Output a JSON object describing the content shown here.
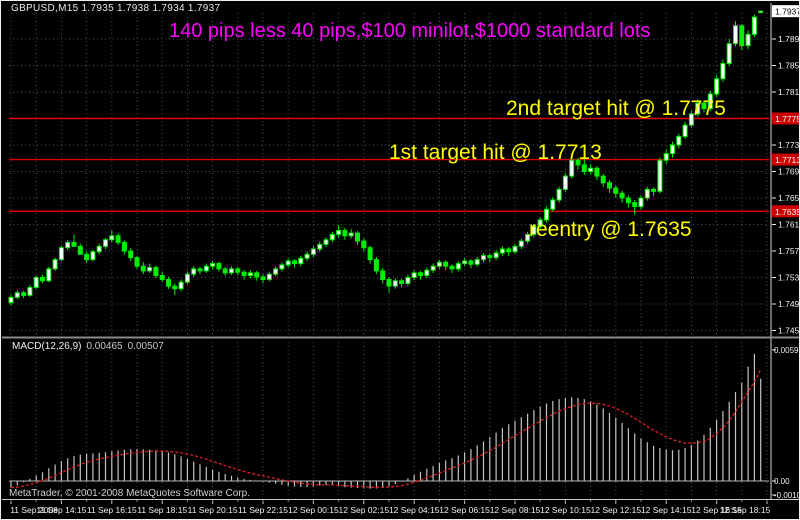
{
  "window": {
    "title_ohlc": "GBPUSD,M15 1.7935 1.7938 1.7934 1.7937",
    "copyright": "MetaTrader, © 2001-2008 MetaQuotes Software Corp."
  },
  "annotations": {
    "pips_note": "140 pips less 40 pips,$100 minilot,$1000 standard lots",
    "target2": "2nd target hit @ 1.7775",
    "target1": "1st target hit @ 1.7713",
    "reentry": "reentry @ 1.7635"
  },
  "colors": {
    "background": "#000000",
    "bull_body": "#ffffff",
    "bear_body_and_wick": "#00f000",
    "grid": "#44525e",
    "hline_red": "#dd0000",
    "axis_text": "#f0f0f0",
    "magenta_note": "#ff00ff",
    "yellow_note": "#ffff00",
    "macd_histogram": "#c4c4c4",
    "macd_signal": "#e02020",
    "price_flag_red_bg": "#cc0000",
    "current_price_flag_bg": "#ffffff"
  },
  "chart_data": {
    "type": "candlestick",
    "symbol": "GBPUSD",
    "timeframe": "M15",
    "title": "GBPUSD,M15",
    "last_bar": {
      "open": 1.7935,
      "high": 1.7938,
      "low": 1.7934,
      "close": 1.7937
    },
    "current_price_label": "1.7937",
    "price_range_hint": {
      "top": 1.794,
      "bottom": 1.745
    },
    "grid": "dotted",
    "price_ticks": [
      "1.7895",
      "1.7855",
      "1.7815",
      "1.7775",
      "1.7735",
      "1.7695",
      "1.7655",
      "1.7615",
      "1.7575",
      "1.7535",
      "1.7495",
      "1.7455"
    ],
    "x_labels": [
      "11 Sep 2008",
      "11 Sep 14:15",
      "11 Sep 16:15",
      "11 Sep 18:15",
      "11 Sep 20:15",
      "11 Sep 22:15",
      "12 Sep 00:15",
      "12 Sep 02:15",
      "12 Sep 04:15",
      "12 Sep 06:15",
      "12 Sep 08:15",
      "12 Sep 10:15",
      "12 Sep 12:15",
      "12 Sep 14:15",
      "12 Sep 16:15",
      "12 Sep 18:15"
    ],
    "hlines": [
      {
        "price": 1.7775,
        "label": "1.7775",
        "note": "2nd target hit @ 1.7775"
      },
      {
        "price": 1.7713,
        "label": "1.7713",
        "note": "1st target hit @ 1.7713"
      },
      {
        "price": 1.7635,
        "label": "1.7635",
        "note": "reentry @ 1.7635"
      }
    ],
    "candles": [
      [
        1.7497,
        1.7509,
        1.7492,
        1.7505
      ],
      [
        1.7505,
        1.7516,
        1.7502,
        1.7512
      ],
      [
        1.7512,
        1.7515,
        1.7504,
        1.7508
      ],
      [
        1.7508,
        1.7524,
        1.7506,
        1.752
      ],
      [
        1.752,
        1.7538,
        1.7518,
        1.7535
      ],
      [
        1.7535,
        1.7539,
        1.7526,
        1.753
      ],
      [
        1.753,
        1.7551,
        1.7528,
        1.7548
      ],
      [
        1.7548,
        1.7565,
        1.7545,
        1.7562
      ],
      [
        1.7562,
        1.7583,
        1.756,
        1.758
      ],
      [
        1.758,
        1.7592,
        1.7576,
        1.7588
      ],
      [
        1.7588,
        1.76,
        1.7584,
        1.7582
      ],
      [
        1.7582,
        1.7586,
        1.7572,
        1.757
      ],
      [
        1.757,
        1.7574,
        1.7557,
        1.7562
      ],
      [
        1.7562,
        1.7577,
        1.7559,
        1.7574
      ],
      [
        1.7574,
        1.7586,
        1.757,
        1.7582
      ],
      [
        1.7582,
        1.7595,
        1.7578,
        1.7592
      ],
      [
        1.7592,
        1.7606,
        1.7588,
        1.7598
      ],
      [
        1.7598,
        1.7602,
        1.7584,
        1.7588
      ],
      [
        1.7588,
        1.7591,
        1.757,
        1.7575
      ],
      [
        1.7575,
        1.758,
        1.756,
        1.7565
      ],
      [
        1.7565,
        1.7568,
        1.7548,
        1.7552
      ],
      [
        1.7552,
        1.7558,
        1.754,
        1.7545
      ],
      [
        1.7545,
        1.7556,
        1.7542,
        1.755
      ],
      [
        1.755,
        1.7553,
        1.7534,
        1.7538
      ],
      [
        1.7538,
        1.7544,
        1.7528,
        1.7532
      ],
      [
        1.7532,
        1.7536,
        1.7518,
        1.7522
      ],
      [
        1.7522,
        1.7526,
        1.7508,
        1.7518
      ],
      [
        1.7518,
        1.7532,
        1.7514,
        1.7528
      ],
      [
        1.7528,
        1.7544,
        1.7525,
        1.754
      ],
      [
        1.754,
        1.7552,
        1.7536,
        1.7548
      ],
      [
        1.7548,
        1.7551,
        1.754,
        1.7545
      ],
      [
        1.7545,
        1.7556,
        1.7542,
        1.7552
      ],
      [
        1.7552,
        1.756,
        1.7548,
        1.7556
      ],
      [
        1.7556,
        1.7559,
        1.7544,
        1.7548
      ],
      [
        1.7548,
        1.7551,
        1.7537,
        1.7542
      ],
      [
        1.7542,
        1.7552,
        1.7539,
        1.7548
      ],
      [
        1.7548,
        1.7551,
        1.7538,
        1.7543
      ],
      [
        1.7543,
        1.7546,
        1.7532,
        1.7538
      ],
      [
        1.7538,
        1.7546,
        1.7534,
        1.7542
      ],
      [
        1.7542,
        1.7545,
        1.753,
        1.7536
      ],
      [
        1.7536,
        1.754,
        1.7526,
        1.7532
      ],
      [
        1.7532,
        1.7544,
        1.7529,
        1.754
      ],
      [
        1.754,
        1.7552,
        1.7537,
        1.7548
      ],
      [
        1.7548,
        1.7558,
        1.7544,
        1.7554
      ],
      [
        1.7554,
        1.7564,
        1.755,
        1.756
      ],
      [
        1.756,
        1.7563,
        1.755,
        1.7556
      ],
      [
        1.7556,
        1.7568,
        1.7552,
        1.7564
      ],
      [
        1.7564,
        1.7574,
        1.756,
        1.757
      ],
      [
        1.757,
        1.7582,
        1.7566,
        1.7578
      ],
      [
        1.7578,
        1.7589,
        1.7574,
        1.7585
      ],
      [
        1.7585,
        1.7596,
        1.7581,
        1.7592
      ],
      [
        1.7592,
        1.7604,
        1.7588,
        1.76
      ],
      [
        1.76,
        1.7614,
        1.7596,
        1.7606
      ],
      [
        1.7606,
        1.761,
        1.7592,
        1.7598
      ],
      [
        1.7598,
        1.7608,
        1.7594,
        1.7602
      ],
      [
        1.7602,
        1.7605,
        1.7584,
        1.759
      ],
      [
        1.759,
        1.7594,
        1.7574,
        1.758
      ],
      [
        1.758,
        1.7583,
        1.7556,
        1.7562
      ],
      [
        1.7562,
        1.7566,
        1.754,
        1.7545
      ],
      [
        1.7545,
        1.7549,
        1.7526,
        1.7532
      ],
      [
        1.7532,
        1.7536,
        1.7512,
        1.7522
      ],
      [
        1.7522,
        1.7534,
        1.7518,
        1.753
      ],
      [
        1.753,
        1.7533,
        1.752,
        1.7526
      ],
      [
        1.7526,
        1.7539,
        1.7522,
        1.7535
      ],
      [
        1.7535,
        1.7546,
        1.7531,
        1.7542
      ],
      [
        1.7542,
        1.7545,
        1.7532,
        1.7538
      ],
      [
        1.7538,
        1.755,
        1.7534,
        1.7546
      ],
      [
        1.7546,
        1.7556,
        1.7542,
        1.7552
      ],
      [
        1.7552,
        1.7562,
        1.7548,
        1.7558
      ],
      [
        1.7558,
        1.7561,
        1.7546,
        1.7552
      ],
      [
        1.7552,
        1.7555,
        1.7542,
        1.7548
      ],
      [
        1.7548,
        1.756,
        1.7544,
        1.7556
      ],
      [
        1.7556,
        1.7564,
        1.7552,
        1.756
      ],
      [
        1.756,
        1.7563,
        1.7549,
        1.7555
      ],
      [
        1.7555,
        1.7566,
        1.7551,
        1.7562
      ],
      [
        1.7562,
        1.7572,
        1.7558,
        1.7568
      ],
      [
        1.7568,
        1.7571,
        1.7558,
        1.7565
      ],
      [
        1.7565,
        1.7576,
        1.7561,
        1.7572
      ],
      [
        1.7572,
        1.7582,
        1.7568,
        1.7578
      ],
      [
        1.7578,
        1.7581,
        1.7568,
        1.7574
      ],
      [
        1.7574,
        1.7586,
        1.757,
        1.7582
      ],
      [
        1.7582,
        1.7594,
        1.7578,
        1.759
      ],
      [
        1.759,
        1.7604,
        1.7586,
        1.76
      ],
      [
        1.76,
        1.7616,
        1.7596,
        1.7612
      ],
      [
        1.7612,
        1.7626,
        1.7608,
        1.7622
      ],
      [
        1.7622,
        1.7642,
        1.7618,
        1.7638
      ],
      [
        1.7638,
        1.7656,
        1.7634,
        1.7652
      ],
      [
        1.7652,
        1.7672,
        1.7648,
        1.7668
      ],
      [
        1.7668,
        1.7692,
        1.7664,
        1.7688
      ],
      [
        1.7688,
        1.7722,
        1.7684,
        1.7712
      ],
      [
        1.7712,
        1.7716,
        1.7698,
        1.7705
      ],
      [
        1.7705,
        1.7718,
        1.769,
        1.7695
      ],
      [
        1.7695,
        1.7706,
        1.7691,
        1.77
      ],
      [
        1.77,
        1.7703,
        1.7682,
        1.7688
      ],
      [
        1.7688,
        1.7692,
        1.7672,
        1.7678
      ],
      [
        1.7678,
        1.7682,
        1.7663,
        1.767
      ],
      [
        1.767,
        1.7674,
        1.7655,
        1.7662
      ],
      [
        1.7662,
        1.7666,
        1.7648,
        1.7655
      ],
      [
        1.7655,
        1.7659,
        1.7641,
        1.7648
      ],
      [
        1.7648,
        1.7652,
        1.763,
        1.7642
      ],
      [
        1.7642,
        1.7659,
        1.7638,
        1.7655
      ],
      [
        1.7655,
        1.7672,
        1.7651,
        1.7668
      ],
      [
        1.7668,
        1.7671,
        1.7658,
        1.7665
      ],
      [
        1.7665,
        1.7716,
        1.7662,
        1.7712
      ],
      [
        1.7712,
        1.7728,
        1.7706,
        1.7722
      ],
      [
        1.7722,
        1.774,
        1.7716,
        1.7735
      ],
      [
        1.7735,
        1.7752,
        1.773,
        1.7748
      ],
      [
        1.7748,
        1.777,
        1.7744,
        1.7765
      ],
      [
        1.7765,
        1.7787,
        1.7761,
        1.7782
      ],
      [
        1.7782,
        1.7804,
        1.7778,
        1.7798
      ],
      [
        1.7798,
        1.7802,
        1.7784,
        1.779
      ],
      [
        1.779,
        1.7817,
        1.7786,
        1.7812
      ],
      [
        1.7812,
        1.784,
        1.7808,
        1.7835
      ],
      [
        1.7835,
        1.7864,
        1.783,
        1.7858
      ],
      [
        1.7858,
        1.7895,
        1.7854,
        1.7888
      ],
      [
        1.7888,
        1.7922,
        1.7884,
        1.7915
      ],
      [
        1.7915,
        1.7918,
        1.7878,
        1.7885
      ],
      [
        1.7885,
        1.7908,
        1.788,
        1.7902
      ],
      [
        1.7902,
        1.7932,
        1.7898,
        1.7928
      ],
      [
        1.7935,
        1.7938,
        1.7934,
        1.7937
      ]
    ],
    "indicator": {
      "name": "MACD",
      "label": "MACD(12,26,9)",
      "value_main": "0.00465",
      "value_signal": "0.00507",
      "ticks_labels": [
        "0.00596",
        "0.00",
        "-0.00105"
      ],
      "ticks_values": [
        0.00596,
        0.0,
        -0.00105
      ],
      "main": [
        -0.0003,
        -0.0002,
        -5e-05,
        0.0001,
        0.00025,
        0.0004,
        0.00058,
        0.00075,
        0.0009,
        0.00103,
        0.00113,
        0.0012,
        0.00124,
        0.00126,
        0.00128,
        0.00131,
        0.00135,
        0.00139,
        0.00142,
        0.00144,
        0.00145,
        0.00144,
        0.00142,
        0.0014,
        0.00136,
        0.0013,
        0.00122,
        0.00112,
        0.001,
        0.00088,
        0.00076,
        0.00064,
        0.00052,
        0.00042,
        0.00032,
        0.00024,
        0.00016,
        0.0001,
        5e-05,
        1e-05,
        -3e-05,
        -7e-05,
        -0.00012,
        -0.00017,
        -0.00022,
        -0.00026,
        -0.00028,
        -0.00028,
        -0.00025,
        -0.0002,
        -0.00018,
        -0.0002,
        -0.00024,
        -0.00028,
        -0.0003,
        -0.00032,
        -0.00034,
        -0.00035,
        -0.00034,
        -0.0003,
        -0.00024,
        -0.00014,
        -2e-05,
        0.00012,
        0.00028,
        0.00042,
        0.00055,
        0.00068,
        0.00082,
        0.00094,
        0.00104,
        0.00116,
        0.0013,
        0.00145,
        0.00162,
        0.0018,
        0.002,
        0.0022,
        0.0024,
        0.00258,
        0.00274,
        0.0029,
        0.00306,
        0.00322,
        0.00338,
        0.00352,
        0.00364,
        0.00372,
        0.00378,
        0.0038,
        0.00378,
        0.00372,
        0.00362,
        0.00348,
        0.0033,
        0.0031,
        0.00288,
        0.00264,
        0.0024,
        0.00216,
        0.00194,
        0.00176,
        0.0016,
        0.0015,
        0.00144,
        0.0014,
        0.00142,
        0.0015,
        0.00164,
        0.00184,
        0.0021,
        0.00242,
        0.00278,
        0.00318,
        0.0036,
        0.00404,
        0.00446,
        0.0052,
        0.00578,
        0.00465
      ],
      "signal": [
        -0.0003,
        -0.00028,
        -0.00023,
        -0.00016,
        -8e-05,
        2e-05,
        0.00013,
        0.00025,
        0.00038,
        0.00051,
        0.00064,
        0.00075,
        0.00085,
        0.00093,
        0.001,
        0.00106,
        0.00112,
        0.00117,
        0.00122,
        0.00127,
        0.0013,
        0.00133,
        0.00135,
        0.00136,
        0.00136,
        0.00135,
        0.00132,
        0.00128,
        0.00122,
        0.00116,
        0.00108,
        0.00099,
        0.00089,
        0.0008,
        0.0007,
        0.00061,
        0.00052,
        0.00044,
        0.00036,
        0.00029,
        0.00023,
        0.00017,
        0.00011,
        5e-05,
        0.0,
        -5e-05,
        -0.0001,
        -0.00013,
        -0.00016,
        -0.00017,
        -0.00017,
        -0.00017,
        -0.00019,
        -0.00021,
        -0.00023,
        -0.00024,
        -0.00026,
        -0.00028,
        -0.00029,
        -0.00029,
        -0.00028,
        -0.00025,
        -0.00021,
        -0.00014,
        -6e-05,
        4e-05,
        0.00014,
        0.00025,
        0.00036,
        0.00048,
        0.00059,
        0.0007,
        0.00082,
        0.00095,
        0.00108,
        0.00123,
        0.00138,
        0.00154,
        0.00172,
        0.00189,
        0.00206,
        0.00223,
        0.00239,
        0.00256,
        0.00272,
        0.00288,
        0.00303,
        0.00317,
        0.00329,
        0.00339,
        0.00347,
        0.00352,
        0.00354,
        0.00353,
        0.00348,
        0.00341,
        0.0033,
        0.00317,
        0.00302,
        0.00285,
        0.00267,
        0.00248,
        0.00231,
        0.00215,
        0.00201,
        0.00189,
        0.00179,
        0.00173,
        0.00171,
        0.00174,
        0.00181,
        0.00195,
        0.00215,
        0.00242,
        0.00275,
        0.00315,
        0.0036,
        0.00405,
        0.0045,
        0.00507
      ]
    }
  }
}
